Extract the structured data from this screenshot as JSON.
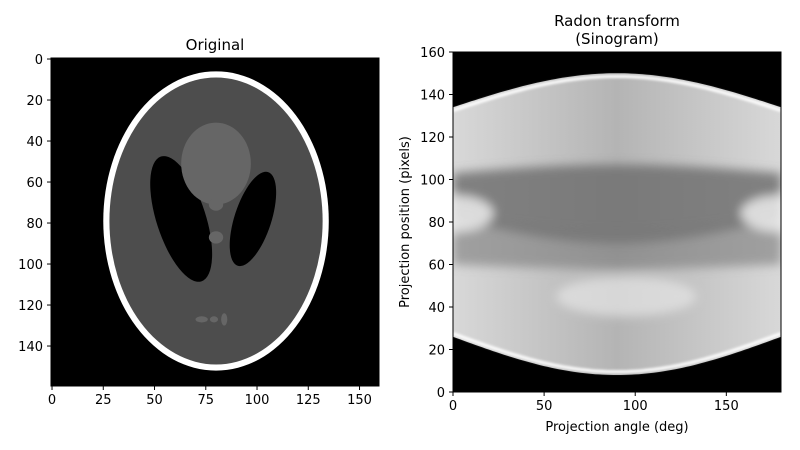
{
  "chart_data": [
    {
      "type": "heatmap",
      "title": "Original",
      "xlabel": "",
      "ylabel": "",
      "colormap": "gray",
      "x_ticks": [
        0,
        25,
        50,
        75,
        100,
        125,
        150
      ],
      "y_ticks": [
        0,
        20,
        40,
        60,
        80,
        100,
        120,
        140
      ],
      "xlim": [
        -0.5,
        159.5
      ],
      "ylim": [
        159.5,
        -0.5
      ],
      "y_axis_inverted": true,
      "image_size": [
        160,
        160
      ],
      "phantom": {
        "name": "Shepp-Logan",
        "regions": [
          {
            "name": "outer-skull",
            "center": [
              80,
              79
            ],
            "semi_axes": [
              55,
              73
            ],
            "value": 1.0
          },
          {
            "name": "brain",
            "center": [
              80,
              79
            ],
            "semi_axes": [
              52,
              70
            ],
            "value": 0.3
          },
          {
            "name": "left-ventricle",
            "center": [
              63,
              78
            ],
            "semi_axes": [
              12,
              32
            ],
            "tilt_deg": -18,
            "value": 0.0
          },
          {
            "name": "right-ventricle",
            "center": [
              98,
              78
            ],
            "semi_axes": [
              9,
              24
            ],
            "tilt_deg": 18,
            "value": 0.0
          },
          {
            "name": "upper-spot",
            "center": [
              80,
              51
            ],
            "semi_axes": [
              17,
              20
            ],
            "value": 0.4
          },
          {
            "name": "small-spot-1",
            "center": [
              80,
              71
            ],
            "semi_axes": [
              3.5,
              3
            ],
            "value": 0.4
          },
          {
            "name": "small-spot-2",
            "center": [
              80,
              87
            ],
            "semi_axes": [
              3.5,
              3
            ],
            "value": 0.4
          },
          {
            "name": "bottom-spot-1",
            "center": [
              73,
              127
            ],
            "semi_axes": [
              3,
              1.5
            ],
            "value": 0.4
          },
          {
            "name": "bottom-spot-2",
            "center": [
              79,
              127
            ],
            "semi_axes": [
              2,
              1.5
            ],
            "value": 0.4
          },
          {
            "name": "bottom-spot-3",
            "center": [
              84,
              127
            ],
            "semi_axes": [
              1.5,
              3
            ],
            "value": 0.4
          }
        ]
      }
    },
    {
      "type": "heatmap",
      "title": "Radon transform\n(Sinogram)",
      "title_lines": [
        "Radon transform",
        "(Sinogram)"
      ],
      "xlabel": "Projection angle (deg)",
      "ylabel": "Projection position (pixels)",
      "colormap": "gray",
      "x_ticks": [
        0,
        50,
        100,
        150
      ],
      "y_ticks": [
        0,
        20,
        40,
        60,
        80,
        100,
        120,
        140,
        160
      ],
      "xlim": [
        0,
        180
      ],
      "ylim": [
        0,
        160
      ],
      "y_axis_inverted": false
    }
  ]
}
